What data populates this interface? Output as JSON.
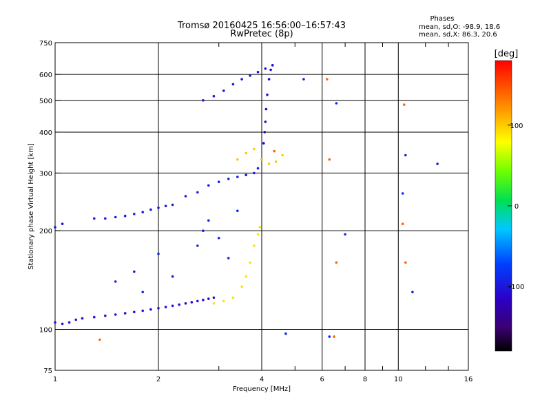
{
  "chart_data": {
    "type": "scatter",
    "title": "Tromsø 20160425 16:56:00–16:57:43",
    "subtitle": "RwPretec (8p)",
    "xlabel": "Frequency [MHz]",
    "ylabel": "Stationary phase Virtual Height [km]",
    "x_scale": "log",
    "y_scale": "log",
    "xlim": [
      1,
      16
    ],
    "ylim": [
      75,
      750
    ],
    "x_ticks": [
      1,
      2,
      4,
      6,
      8,
      10,
      16
    ],
    "x_tick_labels": [
      "1",
      "2",
      "4",
      "6",
      "8",
      "10",
      "16"
    ],
    "y_ticks": [
      75,
      100,
      200,
      300,
      400,
      500,
      600,
      750
    ],
    "y_tick_labels": [
      "75",
      "100",
      "200",
      "300",
      "400",
      "500",
      "600",
      "750"
    ],
    "grid": true,
    "stats": {
      "heading": "Phases",
      "line_o": "mean, sd,O: -98.9, 18.6",
      "line_x": "mean, sd,X:  86.3, 20.6"
    },
    "colorbar": {
      "label": "[deg]",
      "range": [
        -180,
        180
      ],
      "ticks": [
        -100,
        0,
        100
      ],
      "tick_labels": [
        "-100",
        "0",
        "100"
      ],
      "colormap": "rainbow"
    },
    "series": [
      {
        "trace": "lower-layer-trace",
        "phase": -105,
        "x": [
          1.0,
          1.05,
          1.1,
          1.15,
          1.2,
          1.3,
          1.4,
          1.5,
          1.6,
          1.7,
          1.8,
          1.9,
          2.0,
          2.1,
          2.2,
          2.3,
          2.4,
          2.5,
          2.6,
          2.7,
          2.8,
          2.9
        ],
        "y": [
          105,
          104,
          105,
          107,
          108,
          109,
          110,
          111,
          112,
          113,
          114,
          115,
          116,
          117,
          118,
          119,
          120,
          121,
          122,
          123,
          124,
          125
        ]
      },
      {
        "trace": "f1-rise-trace",
        "phase": -100,
        "x": [
          1.0,
          1.05,
          1.3,
          1.4,
          1.5,
          1.6,
          1.7,
          1.8,
          1.9,
          2.0,
          2.1,
          2.2
        ],
        "y": [
          205,
          210,
          218,
          218,
          220,
          222,
          225,
          228,
          232,
          235,
          238,
          240
        ]
      },
      {
        "trace": "f2-trace",
        "phase": -95,
        "x": [
          2.4,
          2.6,
          2.8,
          3.0,
          3.2,
          3.4,
          3.6,
          3.8,
          3.9,
          4.0,
          4.05
        ],
        "y": [
          255,
          262,
          275,
          282,
          288,
          292,
          296,
          300,
          310,
          330,
          370
        ]
      },
      {
        "trace": "f2-cusp-trace",
        "phase": -110,
        "x": [
          4.05,
          4.08,
          4.1,
          4.12,
          4.15,
          4.2,
          4.25,
          4.3
        ],
        "y": [
          370,
          400,
          430,
          470,
          520,
          580,
          620,
          640
        ]
      },
      {
        "trace": "upper-echo-trace",
        "phase": -100,
        "x": [
          2.7,
          2.9,
          3.1,
          3.3,
          3.5,
          3.7,
          3.9,
          4.1,
          4.3
        ],
        "y": [
          500,
          515,
          535,
          560,
          580,
          595,
          610,
          625,
          640
        ]
      },
      {
        "trace": "x-mode-trace",
        "phase": 90,
        "x": [
          2.9,
          3.1,
          3.3,
          3.5,
          3.6,
          3.7,
          3.8,
          3.9,
          3.95
        ],
        "y": [
          120,
          122,
          125,
          135,
          145,
          160,
          180,
          195,
          205
        ]
      },
      {
        "trace": "x-mode-upper-trace",
        "phase": 100,
        "x": [
          3.4,
          3.6,
          3.8,
          4.0,
          4.2,
          4.4,
          4.6
        ],
        "y": [
          330,
          345,
          355,
          330,
          320,
          325,
          340
        ]
      },
      {
        "trace": "scattered-echoes",
        "phase": -90,
        "x": [
          1.5,
          1.7,
          1.8,
          2.0,
          2.2,
          2.6,
          2.7,
          2.8,
          3.0,
          3.2,
          3.4,
          4.7,
          5.3,
          6.3,
          6.6,
          7.0,
          10.3,
          10.5,
          11.0,
          13.0
        ],
        "y": [
          140,
          150,
          130,
          170,
          145,
          180,
          200,
          215,
          190,
          165,
          230,
          97,
          580,
          95,
          490,
          195,
          260,
          340,
          130,
          320
        ]
      },
      {
        "trace": "positive-phase-echoes",
        "phase": 140,
        "x": [
          1.35,
          4.35,
          6.2,
          6.3,
          6.6,
          10.3,
          10.4,
          10.5,
          6.5
        ],
        "y": [
          93,
          350,
          580,
          330,
          160,
          210,
          485,
          160,
          95
        ]
      }
    ]
  }
}
